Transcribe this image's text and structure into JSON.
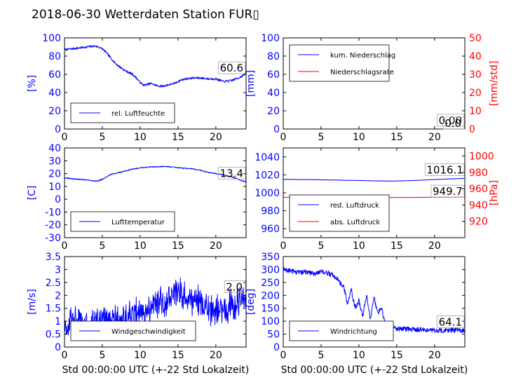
{
  "title": "2018-06-30 Wetterdaten Station FUR▯",
  "x_axis_label": "Std 00:00:00 UTC (+-22 Std Lokalzeit)",
  "colors": {
    "primary": "#0000ff",
    "secondary": "#ff0000",
    "axis": "#000000"
  },
  "chart_data": [
    {
      "type": "line",
      "id": "humidity",
      "xlim": [
        0,
        24
      ],
      "xticks": [
        0,
        5,
        10,
        15,
        20
      ],
      "ylim": [
        0,
        100
      ],
      "yticks": [
        0,
        20,
        40,
        60,
        80,
        100
      ],
      "ylabel": "[%]",
      "legend_loc": "lower-left",
      "last_value_label": "60.6",
      "series": [
        {
          "name": "rel. Luftfeuchte",
          "color": "#0000ff",
          "noise": 1.2,
          "x": [
            0,
            1,
            2,
            3,
            4,
            4.5,
            5,
            5.5,
            6,
            6.5,
            7,
            7.5,
            8,
            8.5,
            9,
            9.5,
            10,
            10.5,
            11,
            11.5,
            12,
            12.5,
            13,
            13.5,
            14,
            14.5,
            15,
            15.5,
            16,
            17,
            18,
            19,
            20,
            21,
            22,
            23,
            24
          ],
          "y": [
            87,
            88,
            89,
            90,
            91,
            90,
            88,
            84,
            79,
            74,
            70,
            67,
            64,
            62,
            60,
            56,
            51,
            48,
            49,
            50,
            48,
            47,
            47,
            48,
            49,
            50,
            52,
            54,
            55,
            56,
            56,
            55,
            55,
            52,
            53,
            56,
            60.6
          ]
        }
      ]
    },
    {
      "type": "line",
      "id": "precip",
      "xlim": [
        0,
        24
      ],
      "xticks": [
        0,
        5,
        10,
        15,
        20
      ],
      "ylim": [
        0,
        100
      ],
      "yticks": [
        0,
        20,
        40,
        60,
        80,
        100
      ],
      "ylabel": "[mm]",
      "ylim_right": [
        0,
        50
      ],
      "yticks_right": [
        0,
        10,
        20,
        30,
        40,
        50
      ],
      "ylabel_right": "[mm/std]",
      "legend_loc": "upper-left",
      "last_value_label": "0.00",
      "last_value_label_right": "0.0",
      "series": [
        {
          "name": "kum. Niederschlag",
          "color": "#0000ff",
          "axis": "left",
          "noise": 0,
          "x": [
            0,
            24
          ],
          "y": [
            0,
            0
          ]
        },
        {
          "name": "Niederschlagsrate",
          "color": "#ff0000",
          "axis": "right",
          "noise": 0,
          "x": [
            0,
            24
          ],
          "y": [
            0,
            0
          ]
        }
      ]
    },
    {
      "type": "line",
      "id": "temperature",
      "xlim": [
        0,
        24
      ],
      "xticks": [
        0,
        5,
        10,
        15,
        20
      ],
      "ylim": [
        -30,
        40
      ],
      "yticks": [
        -30,
        -20,
        -10,
        0,
        10,
        20,
        30,
        40
      ],
      "ylabel": "[C]",
      "legend_loc": "lower-left",
      "last_value_label": "13.4",
      "series": [
        {
          "name": "Lufttemperatur",
          "color": "#0000ff",
          "noise": 0.4,
          "x": [
            0,
            1,
            2,
            3,
            4,
            4.5,
            5,
            5.5,
            6,
            7,
            8,
            9,
            10,
            11,
            12,
            13,
            14,
            15,
            16,
            17,
            18,
            19,
            20,
            21,
            22,
            23,
            24
          ],
          "y": [
            16.5,
            16,
            15.5,
            15,
            14.2,
            14.5,
            15.5,
            17,
            19,
            20.5,
            22,
            23.5,
            24.5,
            25,
            25.3,
            25.5,
            25.3,
            24.6,
            24,
            23.5,
            22.5,
            21,
            20,
            19,
            17.5,
            15.5,
            13.4
          ]
        }
      ]
    },
    {
      "type": "line",
      "id": "pressure",
      "xlim": [
        0,
        24
      ],
      "xticks": [
        0,
        5,
        10,
        15,
        20
      ],
      "ylim": [
        950,
        1050
      ],
      "yticks": [
        960,
        980,
        1000,
        1020,
        1040
      ],
      "ylim_right": [
        900,
        1010
      ],
      "yticks_right": [
        920,
        940,
        960,
        980,
        1000
      ],
      "ylabel_right": "[hPa]",
      "legend_loc": "lower-left",
      "last_value_label": "1016.1",
      "last_value_label_right": "949.7",
      "series": [
        {
          "name": "red. Luftdruck",
          "color": "#0000ff",
          "axis": "left",
          "noise": 0.1,
          "x": [
            0,
            2,
            4,
            6,
            8,
            10,
            12,
            14,
            16,
            18,
            20,
            22,
            24
          ],
          "y": [
            1015,
            1014.8,
            1014.6,
            1014.3,
            1014,
            1013.7,
            1013.3,
            1013.1,
            1013.3,
            1014,
            1014.8,
            1015.5,
            1016.1
          ]
        },
        {
          "name": "abs. Luftdruck",
          "color": "#ff0000",
          "axis": "right",
          "noise": 0.05,
          "x": [
            0,
            4,
            8,
            12,
            16,
            20,
            24
          ],
          "y": [
            949.5,
            949.4,
            949.3,
            949.2,
            949.3,
            949.5,
            949.7
          ]
        }
      ]
    },
    {
      "type": "line",
      "id": "windspeed",
      "xlim": [
        0,
        24
      ],
      "xticks": [
        0,
        5,
        10,
        15,
        20
      ],
      "ylim": [
        0,
        3.5
      ],
      "yticks": [
        0,
        0.5,
        1.0,
        1.5,
        2.0,
        2.5,
        3.0,
        3.5
      ],
      "ylabel": "[m/s]",
      "legend_loc": "lower-center",
      "last_value_label": "2.0",
      "series": [
        {
          "name": "Windgeschwindigkeit",
          "color": "#0000ff",
          "noise": 0.55,
          "x": [
            0,
            1,
            2,
            3,
            4,
            5,
            6,
            7,
            8,
            9,
            10,
            11,
            12,
            13,
            14,
            15,
            16,
            17,
            18,
            19,
            20,
            21,
            22,
            23,
            24
          ],
          "y": [
            0.8,
            0.9,
            1.0,
            0.8,
            0.9,
            1.0,
            0.9,
            1.0,
            1.0,
            1.3,
            1.4,
            1.5,
            1.6,
            1.7,
            1.9,
            2.0,
            1.8,
            1.9,
            1.7,
            1.5,
            1.4,
            1.6,
            1.5,
            1.8,
            2.0
          ]
        }
      ]
    },
    {
      "type": "line",
      "id": "winddir",
      "xlim": [
        0,
        24
      ],
      "xticks": [
        0,
        5,
        10,
        15,
        20
      ],
      "ylim": [
        0,
        350
      ],
      "yticks": [
        0,
        50,
        100,
        150,
        200,
        250,
        300,
        350
      ],
      "ylabel": "[deg]",
      "legend_loc": "lower-left",
      "last_value_label": "64.1",
      "series": [
        {
          "name": "Windrichtung",
          "color": "#0000ff",
          "noise": 10,
          "x": [
            0,
            1,
            2,
            3,
            4,
            5,
            6,
            7,
            8,
            8.5,
            9,
            9.5,
            10,
            10.5,
            11,
            11.5,
            12,
            12.5,
            13,
            13.5,
            14,
            15,
            16,
            17,
            18,
            19,
            20,
            21,
            22,
            23,
            24
          ],
          "y": [
            300,
            295,
            290,
            290,
            285,
            290,
            285,
            270,
            230,
            170,
            220,
            150,
            180,
            120,
            200,
            110,
            190,
            130,
            150,
            90,
            75,
            72,
            70,
            68,
            67,
            66,
            65,
            65,
            64,
            65,
            64.1
          ]
        }
      ]
    }
  ]
}
